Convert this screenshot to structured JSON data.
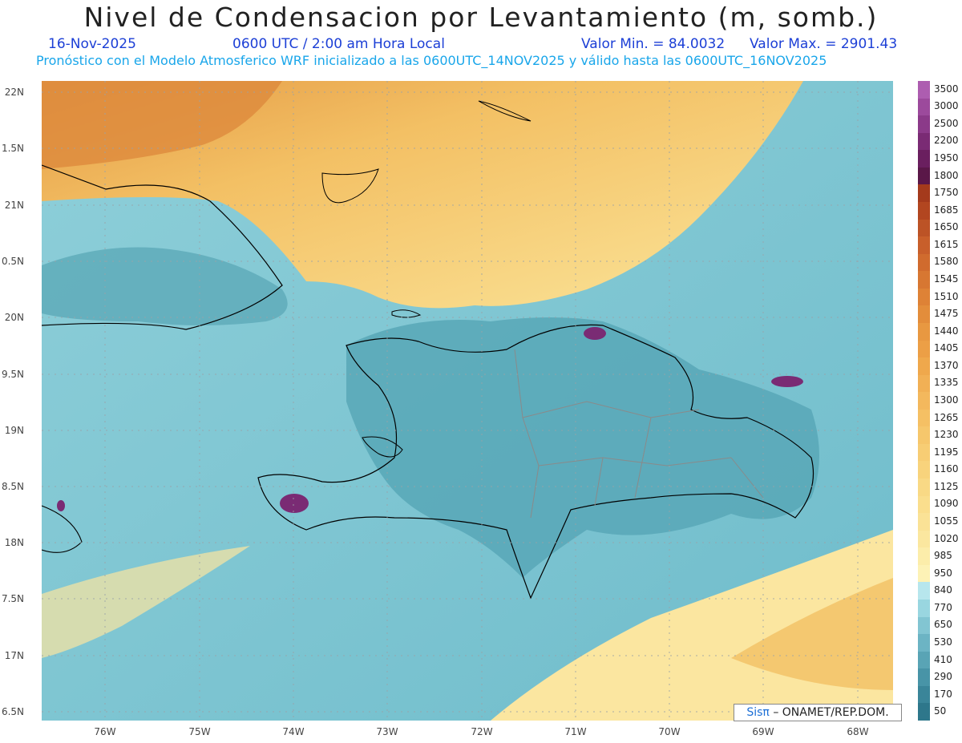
{
  "header": {
    "title": "Nivel de Condensacion por Levantamiento (m, somb.)",
    "date": "16-Nov-2025",
    "time": "0600 UTC / 2:00 am Hora Local",
    "min": "Valor Min. = 84.0032",
    "max": "Valor Max. = 2901.43",
    "forecast": "Pronóstico con el Modelo Atmosferico WRF inicializado a las 0600UTC_14NOV2025 y válido hasta las  0600UTC_16NOV2025"
  },
  "map": {
    "lat_labels": [
      "22N",
      "1.5N",
      "21N",
      "0.5N",
      "20N",
      "9.5N",
      "19N",
      "8.5N",
      "18N",
      "7.5N",
      "17N",
      "6.5N"
    ],
    "lon_labels": [
      "76W",
      "75W",
      "74W",
      "73W",
      "72W",
      "71W",
      "70W",
      "69W",
      "68W"
    ],
    "grid": true,
    "credit": {
      "brand": "Sis",
      "pi": "π",
      "text": "– ONAMET/REP.DOM."
    }
  },
  "colorbar": {
    "labels": [
      "3500",
      "3000",
      "2500",
      "2200",
      "1950",
      "1800",
      "1750",
      "1685",
      "1650",
      "1615",
      "1580",
      "1545",
      "1510",
      "1475",
      "1440",
      "1405",
      "1370",
      "1335",
      "1300",
      "1265",
      "1230",
      "1195",
      "1160",
      "1125",
      "1090",
      "1055",
      "1020",
      "985",
      "950",
      "840",
      "770",
      "650",
      "530",
      "410",
      "290",
      "170",
      "50"
    ],
    "colors": [
      "#ad5db0",
      "#9c4a9c",
      "#8b3a89",
      "#7a2b74",
      "#6a1f5f",
      "#5a1748",
      "#a43a1c",
      "#b24620",
      "#bc5326",
      "#c85f2b",
      "#d06b2e",
      "#d77732",
      "#de8236",
      "#e38d3b",
      "#e89841",
      "#ec9f46",
      "#efa84c",
      "#f1b055",
      "#f3b85d",
      "#f5c064",
      "#f6c76c",
      "#f7cd74",
      "#f8d37c",
      "#f9d985",
      "#fade8d",
      "#fae296",
      "#fbe79f",
      "#fcedaa",
      "#fdf2b6",
      "#b7e6ed",
      "#99d6e0",
      "#82c5d2",
      "#6cb4c4",
      "#59a4b5",
      "#4894a7",
      "#3a8599",
      "#2e778b"
    ]
  }
}
